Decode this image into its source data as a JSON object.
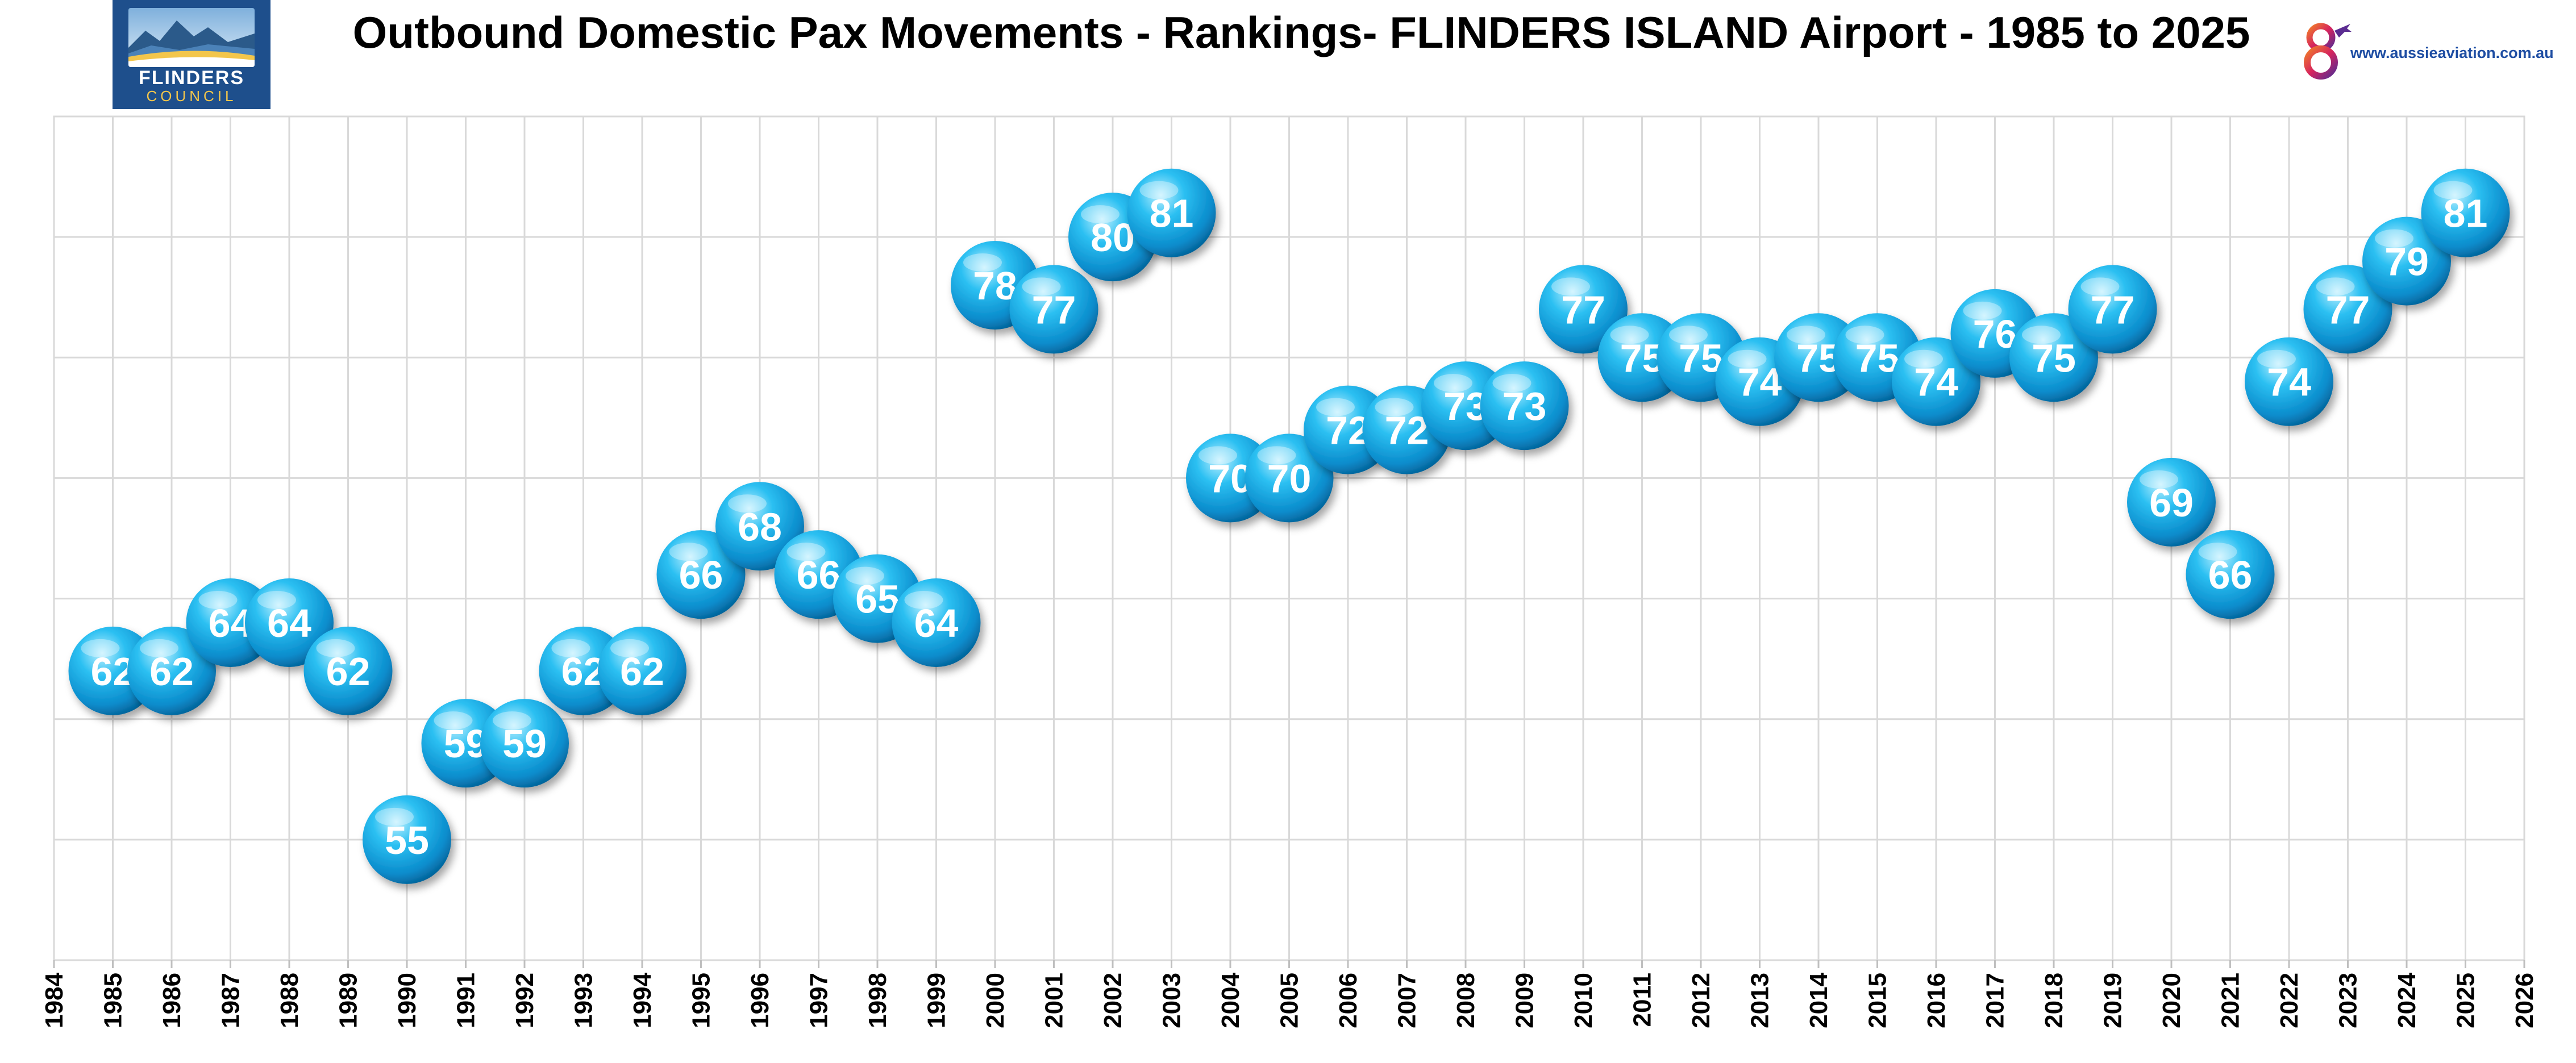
{
  "chart_data": {
    "type": "scatter",
    "title": "Outbound Domestic Pax Movements - Rankings- FLINDERS ISLAND Airport - 1985 to 2025",
    "xlabel": "",
    "ylabel": "",
    "xlim": [
      1984,
      2026
    ],
    "ylim": [
      50,
      85
    ],
    "grid": true,
    "legend": "none",
    "x_ticks": [
      1984,
      1985,
      1986,
      1987,
      1988,
      1989,
      1990,
      1991,
      1992,
      1993,
      1994,
      1995,
      1996,
      1997,
      1998,
      1999,
      2000,
      2001,
      2002,
      2003,
      2004,
      2005,
      2006,
      2007,
      2008,
      2009,
      2010,
      2011,
      2012,
      2013,
      2014,
      2015,
      2016,
      2017,
      2018,
      2019,
      2020,
      2021,
      2022,
      2023,
      2024,
      2025,
      2026
    ],
    "x": [
      1985,
      1986,
      1987,
      1988,
      1989,
      1990,
      1991,
      1992,
      1993,
      1994,
      1995,
      1996,
      1997,
      1998,
      1999,
      2000,
      2001,
      2002,
      2003,
      2004,
      2005,
      2006,
      2007,
      2008,
      2009,
      2010,
      2011,
      2012,
      2013,
      2014,
      2015,
      2016,
      2017,
      2018,
      2019,
      2020,
      2021,
      2022,
      2023,
      2024,
      2025
    ],
    "y": [
      62,
      62,
      64,
      64,
      62,
      55,
      59,
      59,
      62,
      62,
      66,
      68,
      66,
      65,
      64,
      78,
      77,
      80,
      81,
      70,
      70,
      72,
      72,
      73,
      73,
      77,
      75,
      75,
      74,
      75,
      75,
      74,
      76,
      75,
      77,
      69,
      66,
      74,
      77,
      79,
      81
    ],
    "point_labels": [
      "62",
      "62",
      "64",
      "64",
      "62",
      "55",
      "59",
      "59",
      "62",
      "62",
      "66",
      "68",
      "66",
      "65",
      "64",
      "78",
      "77",
      "80",
      "81",
      "70",
      "70",
      "72",
      "72",
      "73",
      "73",
      "77",
      "75",
      "75",
      "74",
      "75",
      "75",
      "74",
      "76",
      "75",
      "77",
      "69",
      "66",
      "74",
      "77",
      "79",
      "81"
    ],
    "marker_color": "#1aa7e0"
  },
  "logos": {
    "left": {
      "line1": "FLINDERS",
      "line2": "COUNCIL"
    },
    "right": {
      "url": "www.aussieaviation.com.au"
    }
  },
  "colors": {
    "grid": "#d9d9d9",
    "axis": "#bfbfbf",
    "background": "#ffffff"
  }
}
